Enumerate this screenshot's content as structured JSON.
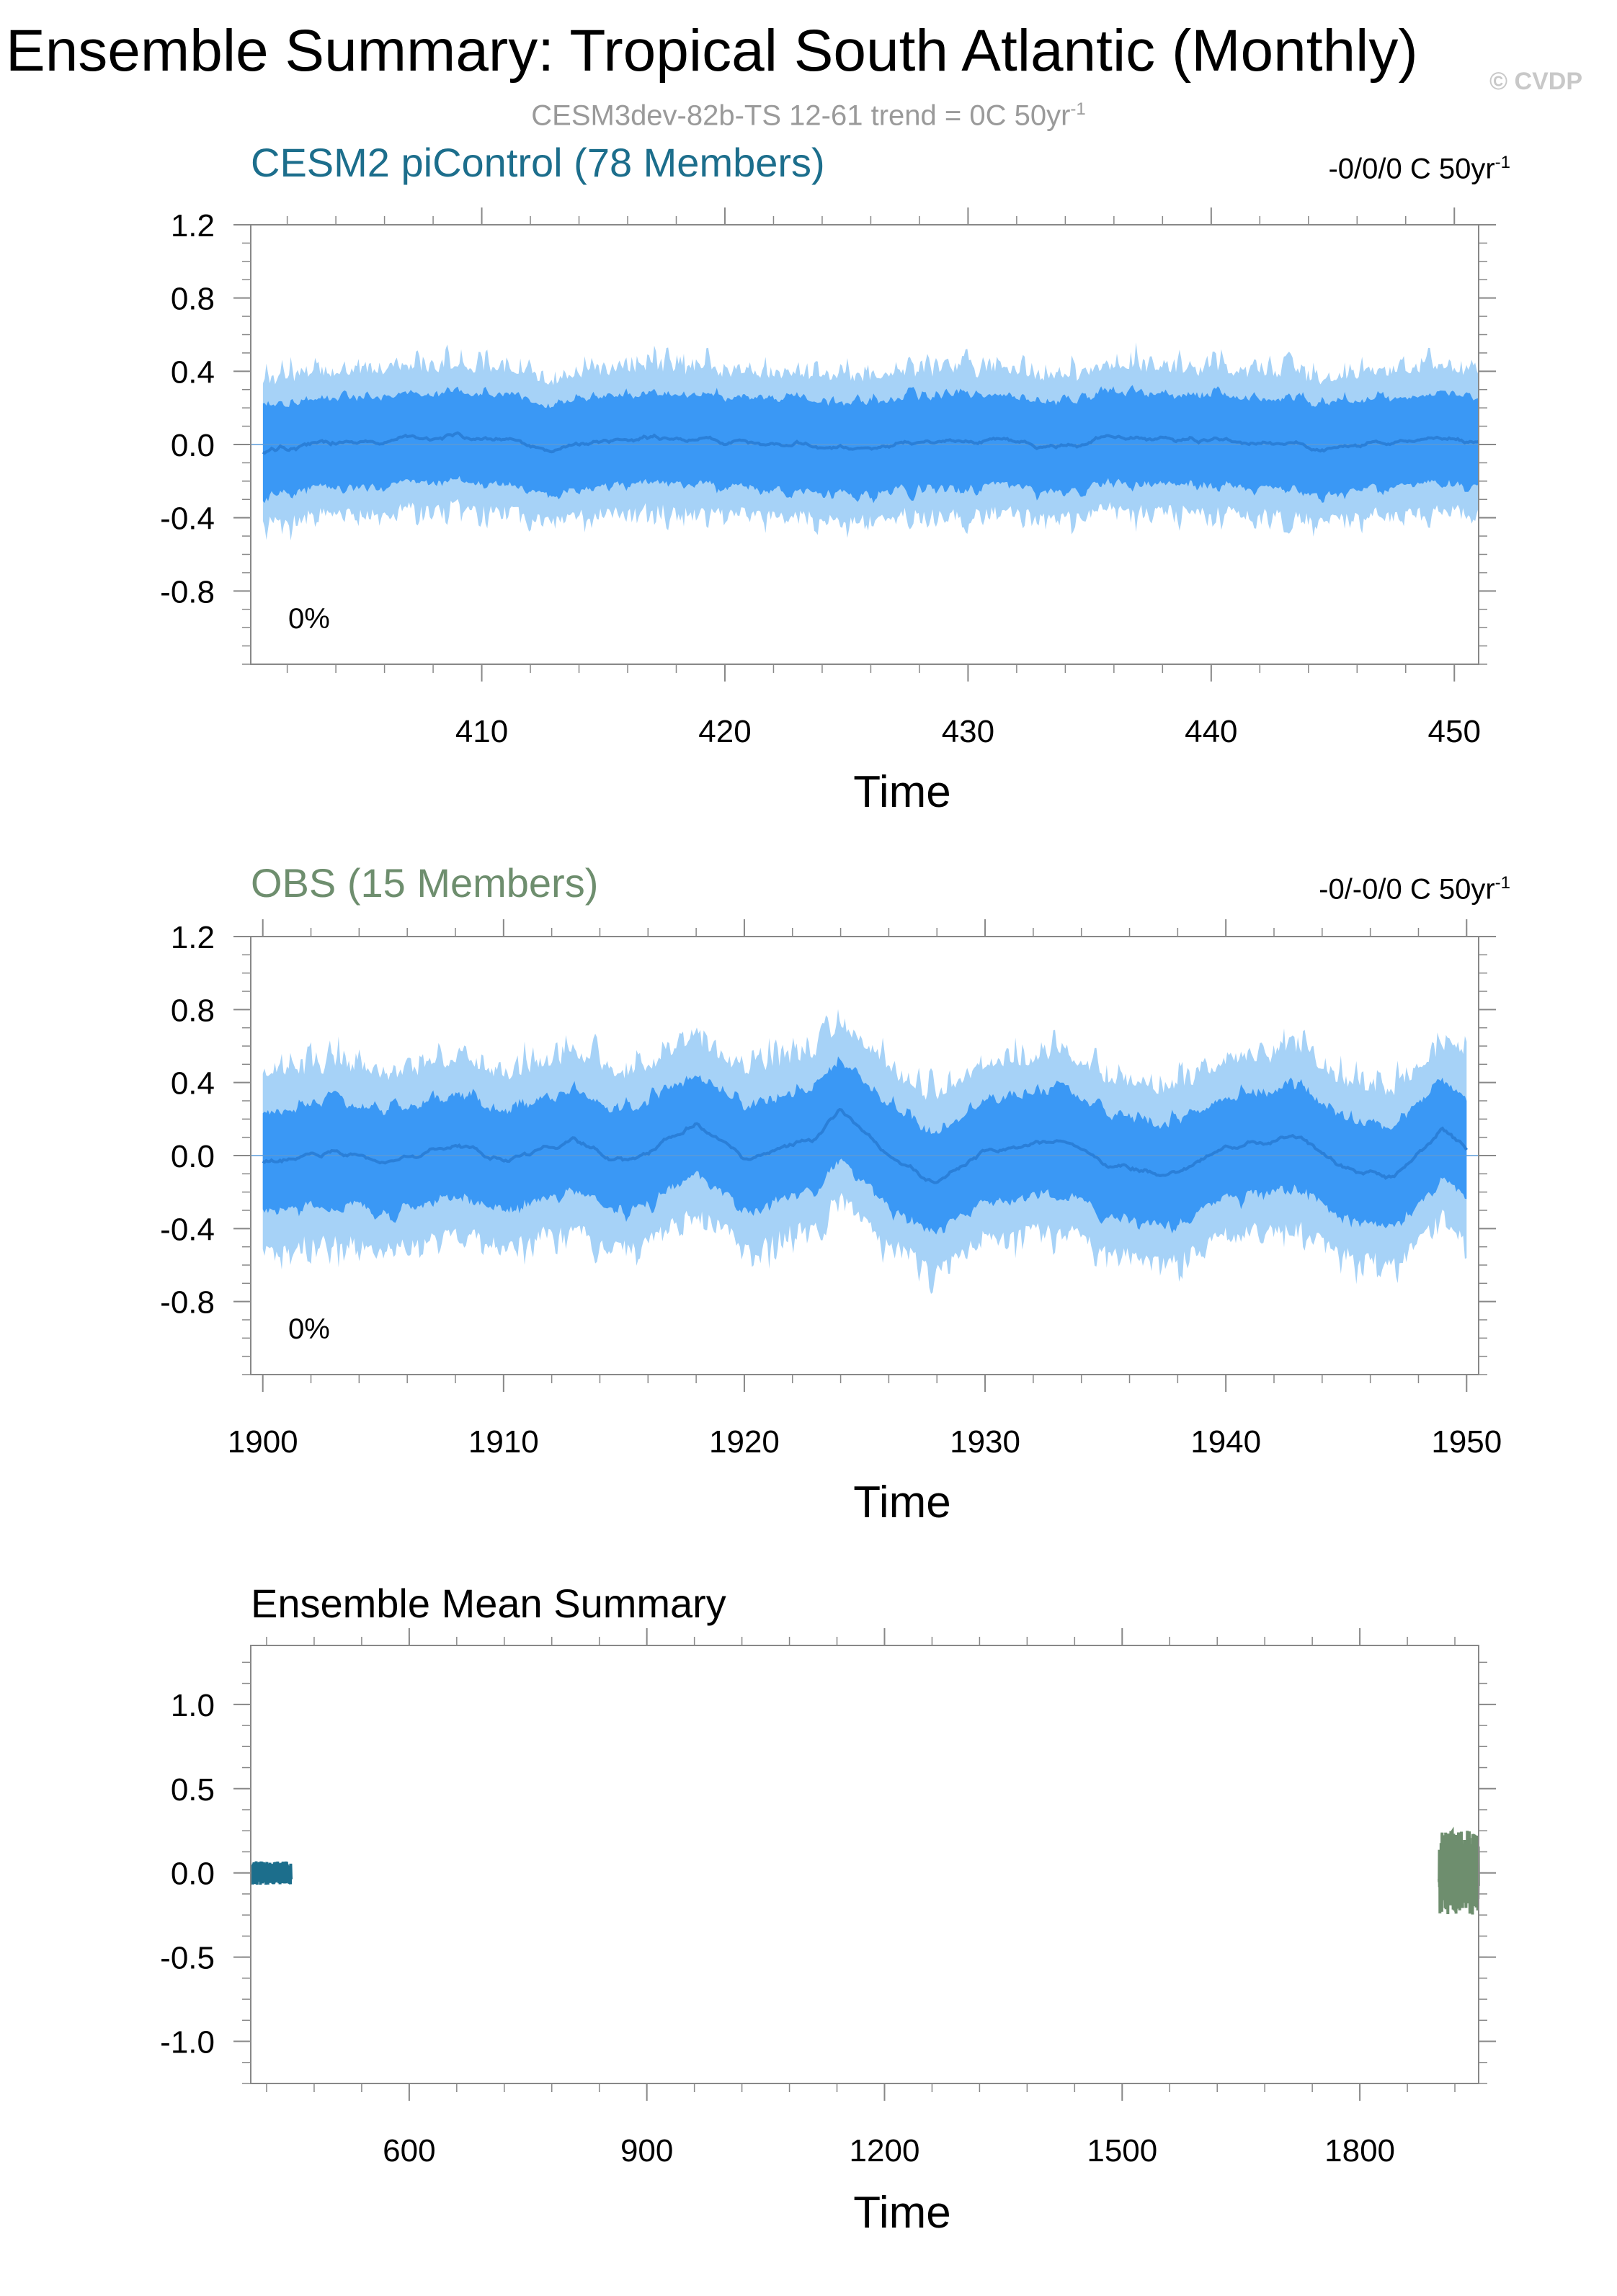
{
  "title": "Ensemble Summary: Tropical South Atlantic (Monthly)",
  "subtitle": "CESM3dev-82b-TS 12-61 trend = 0C 50yr",
  "subtitle_sup": "-1",
  "copyright": "© CVDP",
  "colors": {
    "band_outer": "#a6d2f7",
    "band_inner": "#3a98f5",
    "mean_line": "#2a7fd8",
    "cesm": "#1c6e8c",
    "obs": "#6e8e6e",
    "axis": "#888888"
  },
  "chart_data": [
    {
      "type": "area",
      "title": "CESM2 piControl (78 Members)",
      "trend_label": "-0/0/0 C 50yr",
      "trend_sup": "-1",
      "annotation": "0%",
      "xlabel": "Time",
      "ylabel": "",
      "xlim": [
        400.5,
        451
      ],
      "ylim": [
        -1.2,
        1.2
      ],
      "xticks": [
        410,
        420,
        430,
        440,
        450
      ],
      "xtick_labels": [
        "410",
        "420",
        "430",
        "440",
        "450"
      ],
      "yticks": [
        1.2,
        0.8,
        0.4,
        0.0,
        -0.4,
        -0.8
      ],
      "ytick_labels": [
        "1.2",
        "0.8",
        "0.4",
        "0.0",
        "-0.4",
        "-0.8"
      ],
      "series": [
        {
          "x": [
            401,
            405,
            409,
            413,
            417,
            421,
            425,
            429,
            433,
            437,
            441,
            445,
            449,
            451
          ],
          "values": [
            -0.03,
            0.02,
            0.05,
            -0.02,
            0.04,
            0.02,
            -0.03,
            0.03,
            0.0,
            0.04,
            0.01,
            -0.03,
            0.05,
            0.01
          ],
          "inner_halfwidth": 0.27,
          "outer_halfwidth": 0.45
        }
      ]
    },
    {
      "type": "area",
      "title": "OBS (15 Members)",
      "trend_label": "-0/-0/0 C 50yr",
      "trend_sup": "-1",
      "annotation": "0%",
      "xlabel": "Time",
      "ylabel": "",
      "xlim": [
        1899.5,
        1950.5
      ],
      "ylim": [
        -1.2,
        1.2
      ],
      "xticks": [
        1900,
        1910,
        1920,
        1930,
        1940,
        1950
      ],
      "xtick_labels": [
        "1900",
        "1910",
        "1920",
        "1930",
        "1940",
        "1950"
      ],
      "yticks": [
        1.2,
        0.8,
        0.4,
        0.0,
        -0.4,
        -0.8
      ],
      "ytick_labels": [
        "1.2",
        "0.8",
        "0.4",
        "0.0",
        "-0.4",
        "-0.8"
      ],
      "series": [
        {
          "x": [
            1900,
            1903,
            1905,
            1908,
            1910,
            1913,
            1915,
            1918,
            1920,
            1923,
            1924,
            1926,
            1928,
            1930,
            1933,
            1935,
            1938,
            1940,
            1943,
            1945,
            1947,
            1949,
            1950
          ],
          "values": [
            -0.03,
            0.02,
            -0.05,
            0.06,
            -0.02,
            0.08,
            -0.05,
            0.18,
            -0.02,
            0.1,
            0.25,
            0.0,
            -0.15,
            0.03,
            0.08,
            -0.05,
            -0.1,
            0.05,
            0.1,
            -0.08,
            -0.12,
            0.15,
            0.02
          ],
          "inner_halfwidth": 0.3,
          "outer_halfwidth": 0.55
        }
      ]
    },
    {
      "type": "line",
      "title": "Ensemble Mean Summary",
      "xlabel": "Time",
      "ylabel": "",
      "xlim": [
        400,
        1950
      ],
      "ylim": [
        -1.25,
        1.35
      ],
      "xticks": [
        600,
        900,
        1200,
        1500,
        1800
      ],
      "xtick_labels": [
        "600",
        "900",
        "1200",
        "1500",
        "1800"
      ],
      "yticks": [
        1.0,
        0.5,
        0.0,
        -0.5,
        -1.0
      ],
      "ytick_labels": [
        "1.0",
        "0.5",
        "0.0",
        "-0.5",
        "-1.0"
      ],
      "series": [
        {
          "x": [
            401,
            451
          ],
          "amplitude": 0.07,
          "color": "#1c6e8c"
        },
        {
          "x": [
            1900,
            1950
          ],
          "amplitude": 0.25,
          "color": "#6e8e6e"
        }
      ]
    }
  ]
}
